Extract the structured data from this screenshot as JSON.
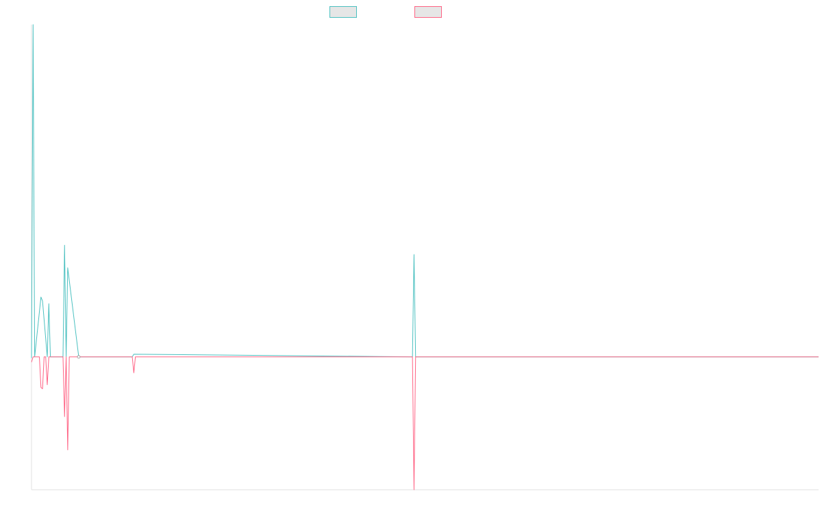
{
  "chart_data": {
    "type": "line",
    "title": "",
    "xlabel": "",
    "ylabel": "",
    "x_range": [
      0,
      250
    ],
    "y_range": [
      -10,
      25
    ],
    "grid": false,
    "legend_placement": "top-center",
    "series": [
      {
        "color": "#4bc0c0",
        "x": [
          0,
          0.5,
          1,
          3,
          3.5,
          5,
          5.5,
          6,
          10,
          10.5,
          11,
          11.5,
          15,
          32,
          32.5,
          121,
          121.5,
          122,
          250
        ],
        "y": [
          -0.1,
          25,
          0,
          4.5,
          4.2,
          0,
          4,
          0,
          0,
          8.4,
          0,
          6.7,
          0,
          0,
          0.2,
          0,
          7.7,
          0,
          0
        ]
      },
      {
        "color": "#ff6384",
        "x": [
          0,
          0.5,
          1,
          2.5,
          3,
          3.5,
          4,
          4.5,
          5,
          5.5,
          6,
          10,
          10.5,
          11,
          11.5,
          12,
          15,
          32,
          32.5,
          33,
          121,
          121.5,
          122,
          250
        ],
        "y": [
          -0.4,
          0,
          0,
          0,
          -2.3,
          -2.4,
          0,
          0,
          -2.1,
          0,
          0,
          0,
          -4.5,
          0,
          -7,
          0,
          0,
          0,
          -1.2,
          0,
          0,
          -10,
          0,
          0
        ]
      }
    ]
  }
}
